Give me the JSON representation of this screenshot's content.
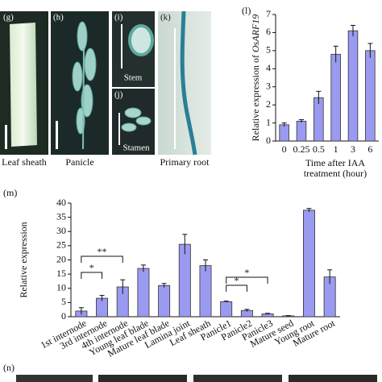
{
  "figure": {
    "panels": [
      {
        "label": "(g)",
        "caption": "Leaf sheath"
      },
      {
        "label": "(h)",
        "caption": "Panicle"
      },
      {
        "label": "(i)",
        "caption": "Stem"
      },
      {
        "label": "(j)",
        "caption": "Stamen"
      },
      {
        "label": "(k)",
        "caption": "Primary root"
      },
      {
        "label": "(n)"
      }
    ]
  },
  "chart_data": [
    {
      "type": "bar",
      "panel": "(l)",
      "y_label": "Relative expression of ",
      "y_label_gene": "OsARF19",
      "x_label": [
        "Time after IAA",
        "treatment (hour)"
      ],
      "categories": [
        "0",
        "0.25",
        "0.5",
        "1",
        "3",
        "6"
      ],
      "series": [
        {
          "color": "#9a9af0",
          "values": [
            0.9,
            1.1,
            2.4,
            4.8,
            6.1,
            5.0
          ],
          "errors": [
            0.1,
            0.08,
            0.35,
            0.45,
            0.3,
            0.4
          ]
        }
      ],
      "ylim": [
        0,
        7
      ],
      "yticks": [
        0,
        1,
        2,
        3,
        4,
        5,
        6,
        7
      ]
    },
    {
      "type": "bar",
      "panel": "(m)",
      "y_label": "Relative expression",
      "categories": [
        "1st internode",
        "3rd internode",
        "4th internode",
        "Young leaf blade",
        "Mature leaf blade",
        "Lamina joint",
        "Leaf sheath",
        "Panicle1",
        "Panicle2",
        "Panicle3",
        "Mature seed",
        "Young root",
        "Mature root"
      ],
      "series": [
        {
          "color": "#9a9af0",
          "values": [
            2,
            6.5,
            10.5,
            17,
            11,
            25.5,
            18,
            5.3,
            2.2,
            1.0,
            0.3,
            37.5,
            14
          ],
          "errors": [
            1.2,
            1,
            2.5,
            1.2,
            0.7,
            3.5,
            2,
            0.2,
            0.4,
            0.2,
            0.1,
            0.6,
            2.5
          ]
        }
      ],
      "ylim": [
        0,
        40
      ],
      "yticks": [
        0,
        5,
        10,
        15,
        20,
        25,
        30,
        35,
        40
      ],
      "annotations": [
        {
          "label": "**",
          "from": "1st internode",
          "to": "4th internode"
        },
        {
          "label": "*",
          "from": "1st internode",
          "to": "3rd internode"
        },
        {
          "label": "*",
          "from": "Panicle1",
          "to": "Panicle3"
        },
        {
          "label": "*",
          "from": "Panicle1",
          "to": "Panicle2"
        }
      ]
    }
  ]
}
